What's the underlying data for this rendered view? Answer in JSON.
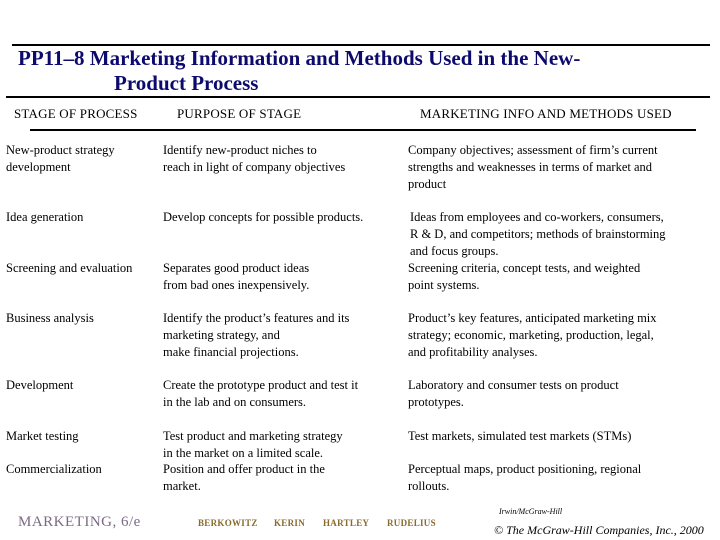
{
  "title": {
    "line1": "PP11–8  Marketing Information and Methods Used in the New-",
    "line2": "Product Process"
  },
  "headers": {
    "stage": "STAGE OF PROCESS",
    "purpose": "PURPOSE OF STAGE",
    "info": "MARKETING INFO AND METHODS USED"
  },
  "rows": [
    {
      "stage": "New-product strategy\ndevelopment",
      "purpose": "Identify new-product niches to\nreach in light of company objectives",
      "info": "Company objectives; assessment of firm’s current\nstrengths and weaknesses in terms of market and\nproduct"
    },
    {
      "stage": "Idea generation",
      "purpose": "Develop concepts for possible products.",
      "info": "Ideas from employees and co-workers, consumers,\nR & D, and competitors; methods of brainstorming\nand focus groups."
    },
    {
      "stage": "Screening and evaluation",
      "purpose": "Separates good product ideas\nfrom bad ones inexpensively.",
      "info": "Screening criteria, concept tests, and weighted\npoint systems."
    },
    {
      "stage": "Business analysis",
      "purpose": "Identify the product’s features and its\nmarketing strategy, and\nmake financial projections.",
      "info": "Product’s key features, anticipated marketing mix\nstrategy; economic, marketing, production, legal,\nand profitability analyses."
    },
    {
      "stage": "Development",
      "purpose": "Create the prototype product and test it\nin the lab and on consumers.",
      "info": "Laboratory and consumer tests on product\nprototypes."
    },
    {
      "stage": "Market testing",
      "purpose": "Test product and marketing strategy\nin the market on a limited scale.",
      "info": "Test markets, simulated test markets (STMs)"
    },
    {
      "stage": "Commercialization",
      "purpose": "Position and offer product in the\nmarket.",
      "info": "Perceptual maps, product positioning, regional\nrollouts."
    }
  ],
  "footer": {
    "book": "MARKETING, 6/e",
    "authors": [
      "BERKOWITZ",
      "KERIN",
      "HARTLEY",
      "RUDELIUS"
    ],
    "publisher": "Irwin/McGraw-Hill",
    "copyright": "© The McGraw-Hill Companies, Inc., 2000"
  },
  "colors": {
    "title": "#0d0a6e",
    "footer_book": "#7a6a86",
    "footer_authors": "#8a6a2a"
  }
}
